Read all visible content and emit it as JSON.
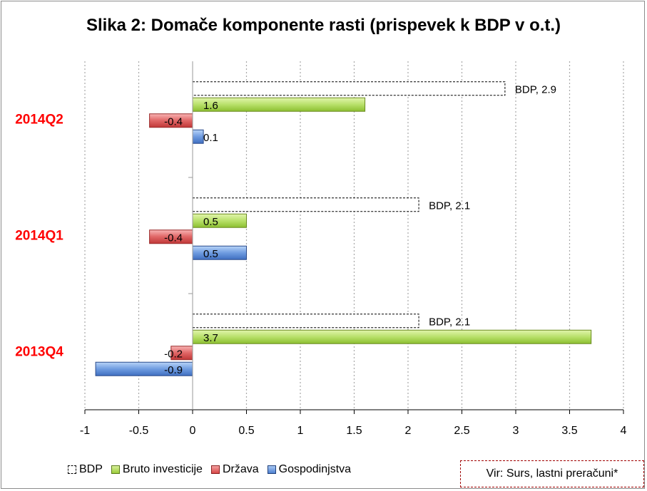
{
  "chart_data": {
    "type": "bar",
    "orientation": "horizontal",
    "title": "Slika 2: Domače komponente rasti (prispevek k BDP v o.t.)",
    "categories": [
      "2014Q2",
      "2014Q1",
      "2013Q4"
    ],
    "series": [
      {
        "name": "BDP",
        "key": "bdp",
        "values": [
          2.9,
          2.1,
          2.1
        ],
        "labels": [
          "BDP, 2.9",
          "BDP, 2.1",
          "BDP, 2.1"
        ]
      },
      {
        "name": "Bruto investicije",
        "key": "inv",
        "values": [
          1.6,
          0.5,
          3.7
        ],
        "labels": [
          "1.6",
          "0.5",
          "3.7"
        ]
      },
      {
        "name": "Država",
        "key": "drz",
        "values": [
          -0.4,
          -0.4,
          -0.2
        ],
        "labels": [
          "-0.4",
          "-0.4",
          "-0.2"
        ]
      },
      {
        "name": "Gospodinjstva",
        "key": "gos",
        "values": [
          0.1,
          0.5,
          -0.9
        ],
        "labels": [
          "0.1",
          "0.5",
          "-0.9"
        ]
      }
    ],
    "xlim": [
      -1,
      4
    ],
    "xticks": [
      "-1",
      "-0.5",
      "0",
      "0.5",
      "1",
      "1.5",
      "2",
      "2.5",
      "3",
      "3.5",
      "4"
    ],
    "category_color": "#ff0000",
    "grid": true,
    "legend": "bottom-left"
  },
  "legend": {
    "bdp": "BDP",
    "inv": "Bruto investicije",
    "drz": "Država",
    "gos": "Gospodinjstva"
  },
  "source": "Vir: Surs, lastni preračuni*",
  "title": "Slika 2: Domače komponente rasti (prispevek k BDP v o.t.)"
}
